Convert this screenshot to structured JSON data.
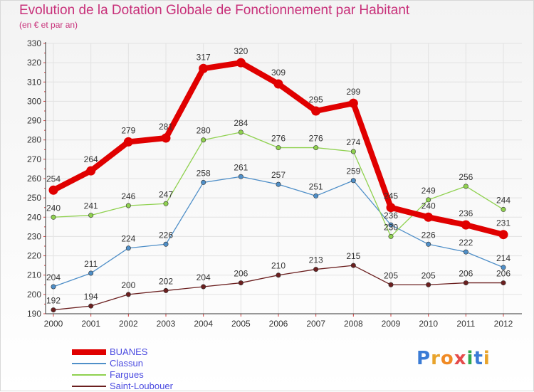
{
  "title": "Evolution de la Dotation Globale de Fonctionnement par Habitant",
  "subtitle": "(en € et par an)",
  "logo": {
    "letters": [
      "P",
      "r",
      "o",
      "x",
      "i",
      "t",
      "i"
    ],
    "colors": [
      "#3a7bd5",
      "#e8a32b",
      "#f08a24",
      "#e54b4b",
      "#2fa84f",
      "#3a7bd5",
      "#e8a32b"
    ]
  },
  "chart_data": {
    "type": "line",
    "title": "Evolution de la Dotation Globale de Fonctionnement par Habitant",
    "subtitle": "(en € et par an)",
    "categories": [
      "2000",
      "2001",
      "2002",
      "2003",
      "2004",
      "2005",
      "2006",
      "2007",
      "2008",
      "2009",
      "2010",
      "2011",
      "2012"
    ],
    "ylim": [
      190,
      330
    ],
    "yticks": [
      190,
      200,
      210,
      220,
      230,
      240,
      250,
      260,
      270,
      280,
      290,
      300,
      310,
      320,
      330
    ],
    "grid": true,
    "legend_position": "bottom-left",
    "series": [
      {
        "name": "BUANES",
        "color": "#e00000",
        "values": [
          254,
          264,
          279,
          281,
          317,
          320,
          309,
          295,
          299,
          245,
          240,
          236,
          231
        ],
        "labels": [
          "254",
          "264",
          "279",
          "281",
          "317",
          "320",
          "309",
          "295",
          "299",
          "245",
          "240",
          "236",
          "231"
        ],
        "emphasis": true
      },
      {
        "name": "Classun",
        "color": "#4f8fc8",
        "values": [
          204,
          211,
          224,
          226,
          258,
          261,
          257,
          251,
          259,
          236,
          226,
          222,
          214
        ],
        "labels": [
          "204",
          "211",
          "224",
          "226",
          "258",
          "261",
          "257",
          "251",
          "259",
          "236",
          "226",
          "222",
          "214"
        ]
      },
      {
        "name": "Fargues",
        "color": "#8fd14f",
        "values": [
          240,
          241,
          246,
          247,
          280,
          284,
          276,
          276,
          274,
          230,
          249,
          256,
          244
        ],
        "labels": [
          "240",
          "241",
          "246",
          "247",
          "280",
          "284",
          "276",
          "276",
          "274",
          "230",
          "249",
          "256",
          "244"
        ]
      },
      {
        "name": "Saint-Loubouer",
        "color": "#6b1f1f",
        "values": [
          192,
          194,
          200,
          202,
          204,
          206,
          210,
          213,
          215,
          205,
          205,
          206,
          206
        ],
        "labels": [
          "192",
          "194",
          "200",
          "202",
          "204",
          "206",
          "210",
          "213",
          "215",
          "205",
          "205",
          "206",
          "206"
        ]
      }
    ]
  }
}
